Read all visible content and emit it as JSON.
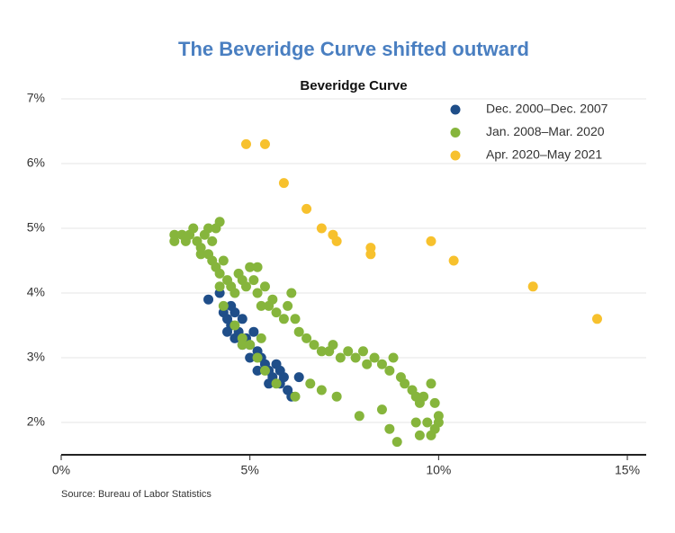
{
  "chart_data": {
    "type": "scatter",
    "title": "The Beveridge Curve shifted outward",
    "subtitle": "Beveridge Curve",
    "source": "Source: Bureau of Labor Statistics",
    "xlim": [
      0,
      15.5
    ],
    "ylim": [
      1.5,
      7
    ],
    "xticks": [
      {
        "value": 0,
        "label": "0%"
      },
      {
        "value": 5,
        "label": "5%"
      },
      {
        "value": 10,
        "label": "10%"
      },
      {
        "value": 15,
        "label": "15%"
      }
    ],
    "yticks": [
      {
        "value": 2,
        "label": "2%"
      },
      {
        "value": 3,
        "label": "3%"
      },
      {
        "value": 4,
        "label": "4%"
      },
      {
        "value": 5,
        "label": "5%"
      },
      {
        "value": 6,
        "label": "6%"
      },
      {
        "value": 7,
        "label": "7%"
      }
    ],
    "grid": true,
    "legend": "upper right",
    "series": [
      {
        "name": "Dec. 2000–Dec. 2007",
        "color": "#1f4e89",
        "x": [
          3.9,
          4.2,
          4.3,
          4.4,
          4.5,
          4.6,
          4.7,
          4.8,
          4.9,
          5.0,
          5.1,
          5.2,
          5.3,
          5.4,
          5.5,
          5.6,
          5.7,
          5.8,
          5.9,
          6.0,
          6.1,
          6.3,
          4.4,
          4.6,
          5.0,
          5.5,
          5.8,
          4.5,
          4.8,
          5.2
        ],
        "values": [
          3.9,
          4.0,
          3.7,
          3.6,
          3.5,
          3.7,
          3.4,
          3.6,
          3.3,
          3.2,
          3.4,
          3.1,
          3.0,
          2.9,
          2.8,
          2.7,
          2.9,
          2.6,
          2.7,
          2.5,
          2.4,
          2.7,
          3.4,
          3.3,
          3.0,
          2.6,
          2.8,
          3.8,
          3.2,
          2.8
        ]
      },
      {
        "name": "Jan. 2008–Mar. 2020",
        "color": "#86b53c",
        "x": [
          3.0,
          3.0,
          3.2,
          3.3,
          3.4,
          3.5,
          3.6,
          3.7,
          3.8,
          3.9,
          4.0,
          4.1,
          4.2,
          3.7,
          3.9,
          4.0,
          4.1,
          4.2,
          4.3,
          4.4,
          4.2,
          4.3,
          4.5,
          4.6,
          4.7,
          4.8,
          4.9,
          5.0,
          5.1,
          5.2,
          5.3,
          5.2,
          5.4,
          5.5,
          5.6,
          5.7,
          5.9,
          6.0,
          6.1,
          6.2,
          6.3,
          6.5,
          6.7,
          6.9,
          7.1,
          7.2,
          7.4,
          7.6,
          7.8,
          8.0,
          8.1,
          8.3,
          8.5,
          8.7,
          8.8,
          9.0,
          9.1,
          9.3,
          9.4,
          9.5,
          9.6,
          9.8,
          9.9,
          10.0,
          10.0,
          9.9,
          9.7,
          9.5,
          9.4,
          9.8,
          8.9,
          8.7,
          8.5,
          7.9,
          7.3,
          6.9,
          6.6,
          6.2,
          5.7,
          5.4,
          5.2,
          5.0,
          4.8,
          4.6,
          4.8,
          5.3
        ],
        "values": [
          4.8,
          4.9,
          4.9,
          4.8,
          4.9,
          5.0,
          4.8,
          4.7,
          4.9,
          5.0,
          4.8,
          5.0,
          5.1,
          4.6,
          4.6,
          4.5,
          4.4,
          4.3,
          4.5,
          4.2,
          4.1,
          3.8,
          4.1,
          4.0,
          4.3,
          4.2,
          4.1,
          4.4,
          4.2,
          4.0,
          3.8,
          4.4,
          4.1,
          3.8,
          3.9,
          3.7,
          3.6,
          3.8,
          4.0,
          3.6,
          3.4,
          3.3,
          3.2,
          3.1,
          3.1,
          3.2,
          3.0,
          3.1,
          3.0,
          3.1,
          2.9,
          3.0,
          2.9,
          2.8,
          3.0,
          2.7,
          2.6,
          2.5,
          2.4,
          2.3,
          2.4,
          2.6,
          2.3,
          2.1,
          2.0,
          1.9,
          2.0,
          1.8,
          2.0,
          1.8,
          1.7,
          1.9,
          2.2,
          2.1,
          2.4,
          2.5,
          2.6,
          2.4,
          2.6,
          2.8,
          3.0,
          3.2,
          3.3,
          3.5,
          3.2,
          3.3
        ]
      },
      {
        "name": "Apr. 2020–May 2021",
        "color": "#f7c12d",
        "x": [
          4.9,
          5.4,
          5.9,
          6.5,
          6.9,
          7.2,
          7.3,
          8.2,
          8.2,
          9.8,
          10.4,
          12.5,
          14.2
        ],
        "values": [
          6.3,
          6.3,
          5.7,
          5.3,
          5.0,
          4.9,
          4.8,
          4.7,
          4.6,
          4.8,
          4.5,
          4.1,
          3.6
        ]
      }
    ]
  }
}
